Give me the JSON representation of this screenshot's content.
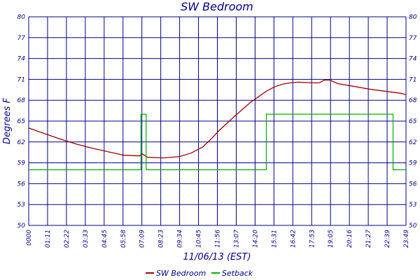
{
  "chart_data": {
    "type": "line",
    "title": "SW Bedroom",
    "xlabel": "11/06/13 (EST)",
    "ylabel": "Degrees F",
    "x_ticks": [
      "0000",
      "01:11",
      "02:22",
      "03:33",
      "04:45",
      "05:58",
      "07:09",
      "08:23",
      "09:34",
      "10:45",
      "11:56",
      "13:07",
      "14:20",
      "15:31",
      "16:42",
      "17:53",
      "19:05",
      "20:16",
      "21:27",
      "22:39",
      "23:49"
    ],
    "y_ticks": [
      50,
      53,
      56,
      59,
      62,
      65,
      68,
      71,
      74,
      77,
      80
    ],
    "ylim": [
      50,
      80
    ],
    "xlim_minutes": [
      0,
      1429
    ],
    "grid": true,
    "legend_position": "bottom-center",
    "series": [
      {
        "name": "SW Bedroom",
        "color": "#a00000",
        "points": [
          {
            "t": "00:00",
            "v": 64.0
          },
          {
            "t": "01:00",
            "v": 63.2
          },
          {
            "t": "02:00",
            "v": 62.4
          },
          {
            "t": "03:00",
            "v": 61.7
          },
          {
            "t": "04:00",
            "v": 61.1
          },
          {
            "t": "05:00",
            "v": 60.6
          },
          {
            "t": "06:00",
            "v": 60.1
          },
          {
            "t": "07:00",
            "v": 60.0
          },
          {
            "t": "07:10",
            "v": 60.3
          },
          {
            "t": "07:30",
            "v": 59.8
          },
          {
            "t": "08:30",
            "v": 59.7
          },
          {
            "t": "09:30",
            "v": 59.9
          },
          {
            "t": "10:15",
            "v": 60.4
          },
          {
            "t": "11:00",
            "v": 61.3
          },
          {
            "t": "11:30",
            "v": 62.4
          },
          {
            "t": "12:00",
            "v": 63.6
          },
          {
            "t": "13:00",
            "v": 65.7
          },
          {
            "t": "14:00",
            "v": 67.7
          },
          {
            "t": "15:00",
            "v": 69.3
          },
          {
            "t": "15:30",
            "v": 69.9
          },
          {
            "t": "16:00",
            "v": 70.3
          },
          {
            "t": "16:30",
            "v": 70.5
          },
          {
            "t": "17:00",
            "v": 70.6
          },
          {
            "t": "18:00",
            "v": 70.5
          },
          {
            "t": "18:20",
            "v": 70.5
          },
          {
            "t": "18:40",
            "v": 70.9
          },
          {
            "t": "19:00",
            "v": 70.9
          },
          {
            "t": "19:30",
            "v": 70.4
          },
          {
            "t": "20:30",
            "v": 70.0
          },
          {
            "t": "21:30",
            "v": 69.6
          },
          {
            "t": "22:30",
            "v": 69.3
          },
          {
            "t": "23:30",
            "v": 69.0
          },
          {
            "t": "23:49",
            "v": 68.8
          }
        ]
      },
      {
        "name": "Setback",
        "color": "#00b000",
        "points": [
          {
            "t": "00:00",
            "v": 58
          },
          {
            "t": "07:05",
            "v": 58
          },
          {
            "t": "07:05",
            "v": 66
          },
          {
            "t": "07:25",
            "v": 66
          },
          {
            "t": "07:25",
            "v": 58
          },
          {
            "t": "15:00",
            "v": 58
          },
          {
            "t": "15:00",
            "v": 66
          },
          {
            "t": "23:00",
            "v": 66
          },
          {
            "t": "23:00",
            "v": 58
          },
          {
            "t": "23:49",
            "v": 58
          }
        ]
      }
    ]
  }
}
